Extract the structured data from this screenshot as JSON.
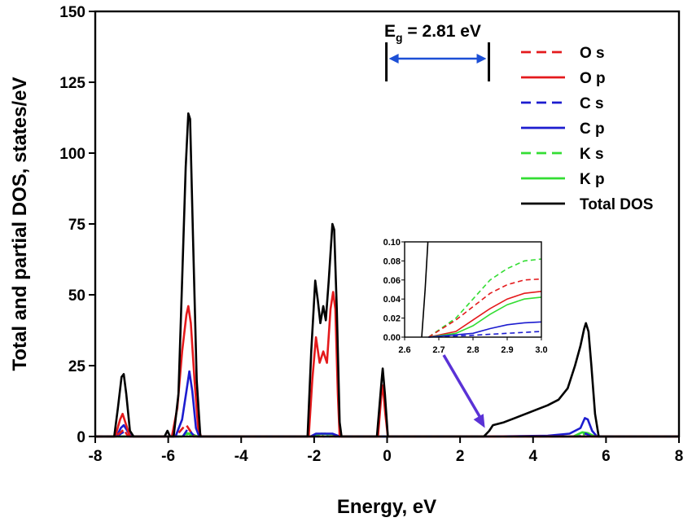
{
  "chart_data": {
    "type": "line",
    "title": "",
    "xlabel": "Energy, eV",
    "ylabel": "Total and partial DOS, states/eV",
    "xlim": [
      -8,
      8
    ],
    "ylim": [
      0,
      150
    ],
    "xticks": [
      -8,
      -6,
      -4,
      -2,
      0,
      2,
      4,
      6,
      8
    ],
    "yticks": [
      0,
      25,
      50,
      75,
      100,
      125,
      150
    ],
    "legend_position": "top-right",
    "series": [
      {
        "name": "O s",
        "color": "#e41a1c",
        "dash": true,
        "points": [
          [
            -8,
            0
          ],
          [
            -7.45,
            0
          ],
          [
            -7.3,
            1.5
          ],
          [
            -7.22,
            2.5
          ],
          [
            -7.12,
            0.5
          ],
          [
            -7.0,
            0
          ],
          [
            -5.8,
            0
          ],
          [
            -5.6,
            3
          ],
          [
            -5.5,
            4
          ],
          [
            -5.4,
            2
          ],
          [
            -5.3,
            0
          ],
          [
            8,
            0
          ]
        ]
      },
      {
        "name": "O p",
        "color": "#e41a1c",
        "dash": false,
        "points": [
          [
            -8,
            0
          ],
          [
            -7.45,
            0
          ],
          [
            -7.32,
            6
          ],
          [
            -7.25,
            8
          ],
          [
            -7.15,
            4
          ],
          [
            -7.05,
            0
          ],
          [
            -5.9,
            0
          ],
          [
            -5.75,
            10
          ],
          [
            -5.62,
            30
          ],
          [
            -5.5,
            43
          ],
          [
            -5.45,
            46
          ],
          [
            -5.38,
            40
          ],
          [
            -5.28,
            20
          ],
          [
            -5.18,
            3
          ],
          [
            -5.1,
            0
          ],
          [
            -2.15,
            0
          ],
          [
            -2.05,
            20
          ],
          [
            -1.95,
            35
          ],
          [
            -1.85,
            26
          ],
          [
            -1.75,
            30
          ],
          [
            -1.65,
            26
          ],
          [
            -1.55,
            45
          ],
          [
            -1.48,
            51
          ],
          [
            -1.42,
            45
          ],
          [
            -1.35,
            15
          ],
          [
            -1.3,
            0
          ],
          [
            -0.25,
            0
          ],
          [
            -0.15,
            16
          ],
          [
            -0.12,
            18
          ],
          [
            -0.05,
            8
          ],
          [
            0.02,
            0
          ],
          [
            8,
            0
          ]
        ]
      },
      {
        "name": "C s",
        "color": "#1c1ccf",
        "dash": true,
        "points": [
          [
            -8,
            0
          ],
          [
            -7.4,
            0
          ],
          [
            -7.25,
            1.5
          ],
          [
            -7.12,
            0
          ],
          [
            -5.6,
            0
          ],
          [
            -5.45,
            3
          ],
          [
            -5.35,
            1
          ],
          [
            -5.25,
            0
          ],
          [
            5.25,
            0
          ],
          [
            5.45,
            1
          ],
          [
            5.6,
            0
          ],
          [
            8,
            0
          ]
        ]
      },
      {
        "name": "C p",
        "color": "#1c1ccf",
        "dash": false,
        "points": [
          [
            -8,
            0
          ],
          [
            -7.42,
            0
          ],
          [
            -7.3,
            3
          ],
          [
            -7.22,
            4
          ],
          [
            -7.12,
            2
          ],
          [
            -7.02,
            0
          ],
          [
            -5.8,
            0
          ],
          [
            -5.62,
            6
          ],
          [
            -5.5,
            16
          ],
          [
            -5.42,
            23
          ],
          [
            -5.34,
            16
          ],
          [
            -5.24,
            3
          ],
          [
            -5.15,
            0
          ],
          [
            -2.1,
            0
          ],
          [
            -1.95,
            1
          ],
          [
            -1.5,
            1
          ],
          [
            -1.3,
            0
          ],
          [
            2.75,
            0
          ],
          [
            4.4,
            0.3
          ],
          [
            5.0,
            1
          ],
          [
            5.3,
            3
          ],
          [
            5.42,
            6.5
          ],
          [
            5.5,
            6
          ],
          [
            5.62,
            2
          ],
          [
            5.75,
            0
          ],
          [
            8,
            0
          ]
        ]
      },
      {
        "name": "K s",
        "color": "#33dd33",
        "dash": true,
        "points": [
          [
            -8,
            0
          ],
          [
            -5.6,
            0
          ],
          [
            -5.45,
            1
          ],
          [
            -5.3,
            0
          ],
          [
            -2.0,
            0
          ],
          [
            -1.7,
            1
          ],
          [
            -1.4,
            0
          ],
          [
            5.2,
            0
          ],
          [
            5.45,
            1
          ],
          [
            5.65,
            0
          ],
          [
            8,
            0
          ]
        ]
      },
      {
        "name": "K p",
        "color": "#33dd33",
        "dash": false,
        "points": [
          [
            -8,
            0
          ],
          [
            -5.62,
            0
          ],
          [
            -5.5,
            1.2
          ],
          [
            -5.35,
            0.8
          ],
          [
            -5.2,
            0
          ],
          [
            -2.05,
            0
          ],
          [
            -1.8,
            1
          ],
          [
            -1.5,
            0.8
          ],
          [
            -1.3,
            0
          ],
          [
            5.1,
            0
          ],
          [
            5.35,
            1.5
          ],
          [
            5.5,
            1.2
          ],
          [
            5.7,
            0
          ],
          [
            8,
            0
          ]
        ]
      },
      {
        "name": "Total DOS",
        "color": "#000000",
        "dash": false,
        "points": [
          [
            -8,
            0
          ],
          [
            -7.48,
            0
          ],
          [
            -7.38,
            10
          ],
          [
            -7.28,
            21
          ],
          [
            -7.22,
            22
          ],
          [
            -7.15,
            15
          ],
          [
            -7.05,
            2
          ],
          [
            -6.95,
            0
          ],
          [
            -6.1,
            0
          ],
          [
            -6.02,
            2
          ],
          [
            -5.95,
            0
          ],
          [
            -5.85,
            0
          ],
          [
            -5.72,
            15
          ],
          [
            -5.62,
            55
          ],
          [
            -5.52,
            95
          ],
          [
            -5.45,
            114
          ],
          [
            -5.4,
            112
          ],
          [
            -5.32,
            70
          ],
          [
            -5.22,
            20
          ],
          [
            -5.12,
            0
          ],
          [
            -2.18,
            0
          ],
          [
            -2.08,
            30
          ],
          [
            -1.97,
            55
          ],
          [
            -1.9,
            48
          ],
          [
            -1.83,
            40
          ],
          [
            -1.75,
            46
          ],
          [
            -1.68,
            41
          ],
          [
            -1.6,
            55
          ],
          [
            -1.5,
            75
          ],
          [
            -1.45,
            73
          ],
          [
            -1.38,
            45
          ],
          [
            -1.3,
            5
          ],
          [
            -1.25,
            0
          ],
          [
            -0.28,
            0
          ],
          [
            -0.15,
            20
          ],
          [
            -0.12,
            24
          ],
          [
            -0.06,
            15
          ],
          [
            0.02,
            0
          ],
          [
            2.65,
            0
          ],
          [
            2.8,
            2
          ],
          [
            2.9,
            4
          ],
          [
            3.2,
            5
          ],
          [
            3.5,
            6.5
          ],
          [
            3.8,
            8
          ],
          [
            4.1,
            9.5
          ],
          [
            4.4,
            11
          ],
          [
            4.7,
            13
          ],
          [
            4.95,
            17
          ],
          [
            5.15,
            25
          ],
          [
            5.3,
            32
          ],
          [
            5.4,
            38
          ],
          [
            5.45,
            40
          ],
          [
            5.52,
            37
          ],
          [
            5.6,
            25
          ],
          [
            5.7,
            8
          ],
          [
            5.8,
            0
          ],
          [
            8,
            0
          ]
        ]
      }
    ],
    "annotations": {
      "gap_symbol": "E",
      "gap_subscript": "g",
      "gap_value_text": " = 2.81 eV",
      "gap_from": -0.02,
      "gap_to": 2.79
    },
    "inset": {
      "type": "line",
      "xlim": [
        2.6,
        3.0
      ],
      "ylim": [
        0,
        0.1
      ],
      "xticks": [
        "2.6",
        "2.7",
        "2.8",
        "2.9",
        "3.0"
      ],
      "yticks": [
        "0.00",
        "0.02",
        "0.04",
        "0.06",
        "0.08",
        "0.10"
      ],
      "series": [
        {
          "name": "K s",
          "color": "#33dd33",
          "dash": true,
          "points": [
            [
              2.67,
              0
            ],
            [
              2.75,
              0.02
            ],
            [
              2.8,
              0.04
            ],
            [
              2.85,
              0.06
            ],
            [
              2.9,
              0.072
            ],
            [
              2.95,
              0.08
            ],
            [
              3.0,
              0.082
            ]
          ]
        },
        {
          "name": "O s",
          "color": "#e41a1c",
          "dash": true,
          "points": [
            [
              2.67,
              0
            ],
            [
              2.75,
              0.018
            ],
            [
              2.8,
              0.032
            ],
            [
              2.85,
              0.046
            ],
            [
              2.9,
              0.055
            ],
            [
              2.95,
              0.06
            ],
            [
              3.0,
              0.061
            ]
          ]
        },
        {
          "name": "O p",
          "color": "#e41a1c",
          "dash": false,
          "points": [
            [
              2.67,
              0
            ],
            [
              2.75,
              0.006
            ],
            [
              2.8,
              0.018
            ],
            [
              2.85,
              0.03
            ],
            [
              2.9,
              0.04
            ],
            [
              2.95,
              0.046
            ],
            [
              3.0,
              0.048
            ]
          ]
        },
        {
          "name": "K p",
          "color": "#33dd33",
          "dash": false,
          "points": [
            [
              2.67,
              0
            ],
            [
              2.75,
              0.004
            ],
            [
              2.8,
              0.012
            ],
            [
              2.85,
              0.024
            ],
            [
              2.9,
              0.034
            ],
            [
              2.95,
              0.04
            ],
            [
              3.0,
              0.042
            ]
          ]
        },
        {
          "name": "C p",
          "color": "#1c1ccf",
          "dash": false,
          "points": [
            [
              2.67,
              0
            ],
            [
              2.8,
              0.004
            ],
            [
              2.85,
              0.009
            ],
            [
              2.9,
              0.013
            ],
            [
              2.95,
              0.015
            ],
            [
              3.0,
              0.016
            ]
          ]
        },
        {
          "name": "C s",
          "color": "#1c1ccf",
          "dash": true,
          "points": [
            [
              2.67,
              0
            ],
            [
              2.8,
              0.002
            ],
            [
              2.9,
              0.004
            ],
            [
              3.0,
              0.006
            ]
          ]
        },
        {
          "name": "Total DOS",
          "color": "#000000",
          "dash": false,
          "points": [
            [
              2.65,
              0
            ],
            [
              2.66,
              0.05
            ],
            [
              2.668,
              0.1
            ]
          ]
        }
      ]
    }
  }
}
